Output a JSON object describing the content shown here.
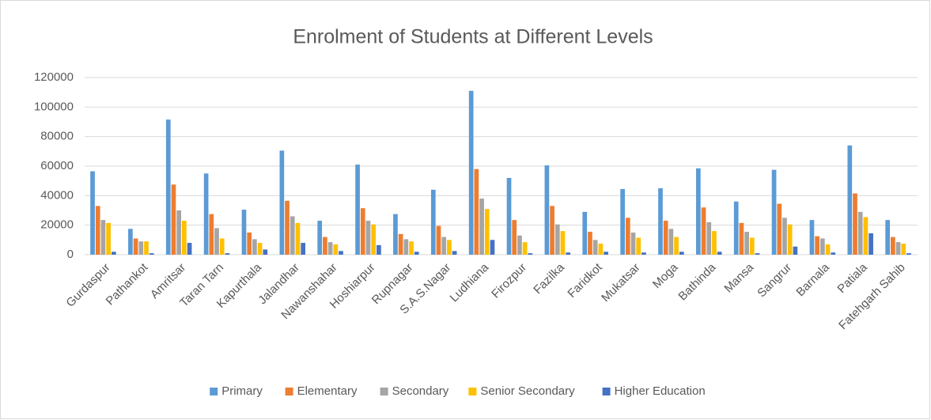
{
  "chart_data": {
    "type": "bar",
    "title": "Enrolment of Students at Different Levels",
    "categories": [
      "Gurdaspur",
      "Pathankot",
      "Amritsar",
      "Taran Tarn",
      "Kapurthala",
      "Jalandhar",
      "Nawanshahar",
      "Hoshiarpur",
      "Rupnagar",
      "S.A.S.Nagar",
      "Ludhiana",
      "Firozpur",
      "Fazilka",
      "Faridkot",
      "Mukatsar",
      "Moga",
      "Bathinda",
      "Mansa",
      "Sangrur",
      "Barnala",
      "Patiala",
      "Fatehgarh Sahib"
    ],
    "series": [
      {
        "name": "Primary",
        "color": "#5b9bd5",
        "values": [
          56500,
          17500,
          91500,
          55000,
          30500,
          70500,
          23000,
          61000,
          27500,
          44000,
          111000,
          52000,
          60500,
          29000,
          44500,
          45000,
          58500,
          36000,
          57500,
          23500,
          74000,
          23500
        ]
      },
      {
        "name": "Elementary",
        "color": "#ed7d31",
        "values": [
          33000,
          11000,
          47500,
          27500,
          15000,
          36500,
          12000,
          31500,
          14000,
          19500,
          58000,
          23500,
          33000,
          15500,
          25000,
          23000,
          32000,
          21500,
          34500,
          12500,
          41500,
          12000
        ]
      },
      {
        "name": "Secondary",
        "color": "#a5a5a5",
        "values": [
          23500,
          9000,
          30000,
          18000,
          10500,
          26000,
          8500,
          23000,
          10500,
          12000,
          38000,
          13000,
          20500,
          10000,
          15000,
          17500,
          22000,
          15500,
          25000,
          11000,
          29000,
          8500
        ]
      },
      {
        "name": "Senior Secondary",
        "color": "#ffc000",
        "values": [
          21500,
          9000,
          23000,
          11000,
          8000,
          21500,
          7000,
          20500,
          9000,
          10000,
          31000,
          8500,
          16000,
          7500,
          11500,
          12000,
          16000,
          11500,
          20500,
          7000,
          25500,
          7500
        ]
      },
      {
        "name": "Higher Education",
        "color": "#4472c4",
        "values": [
          2000,
          1000,
          8000,
          1000,
          3500,
          8000,
          2500,
          6500,
          2000,
          2500,
          10000,
          1000,
          1500,
          2000,
          1500,
          2000,
          2000,
          1000,
          5500,
          1500,
          14500,
          1000
        ]
      }
    ],
    "ylim": [
      0,
      120000
    ],
    "yticks": [
      0,
      20000,
      40000,
      60000,
      80000,
      100000,
      120000
    ],
    "grid": true,
    "legend": "bottom"
  }
}
